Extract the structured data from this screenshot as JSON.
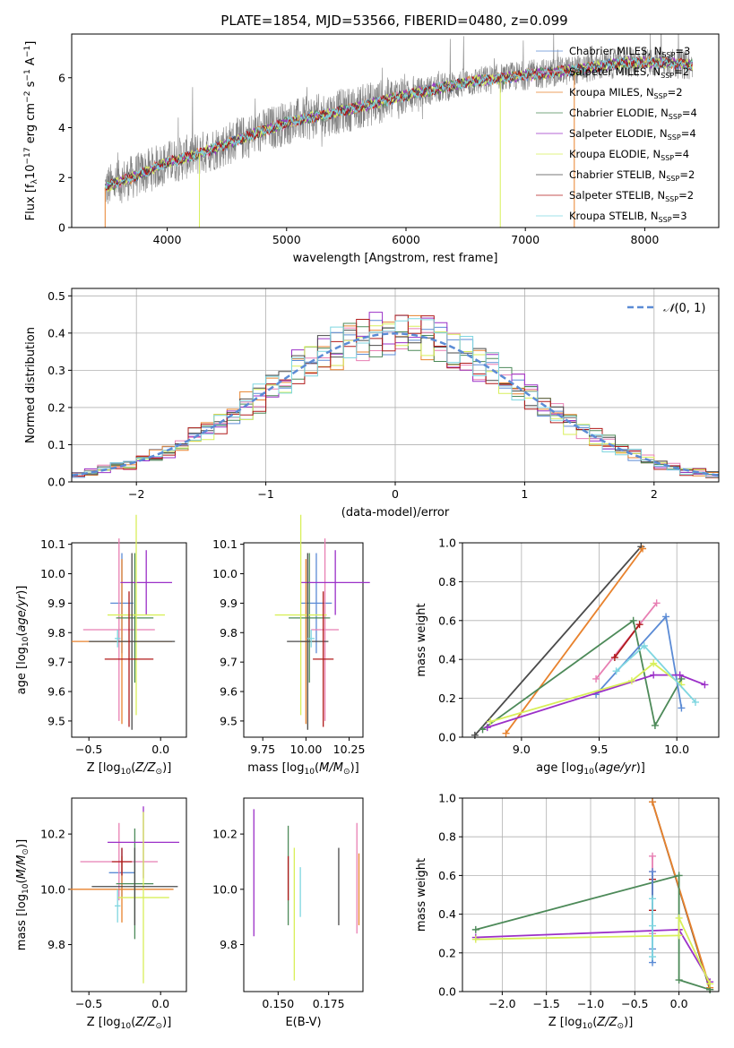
{
  "figure": {
    "title": "PLATE=1854, MJD=53566, FIBERID=0480, z=0.099"
  },
  "colors": {
    "Chabrier MILES": "#5b8bd5",
    "Salpeter MILES": "#e87fb3",
    "Kroupa MILES": "#e8822d",
    "Chabrier ELODIE": "#4d8a59",
    "Salpeter ELODIE": "#9b30c8",
    "Kroupa ELODIE": "#d8ef5a",
    "Chabrier STELIB": "#4a4a4a",
    "Salpeter STELIB": "#b01a1a",
    "Kroupa STELIB": "#7fd6e0",
    "data": "#808080",
    "normal_curve": "#5b8bd5",
    "grid": "#b0b0b0"
  },
  "chart_data": [
    {
      "id": "spectrum",
      "type": "line",
      "title": "PLATE=1854, MJD=53566, FIBERID=0480, z=0.099",
      "xlabel": "wavelength [Angstrom, rest frame]",
      "ylabel": "Flux [f_λ 10^-17 erg cm^-2 s^-1 A^-1]",
      "xlim": [
        3200,
        8620
      ],
      "ylim": [
        0,
        7.75
      ],
      "xticks": [
        "4000",
        "5000",
        "6000",
        "7000",
        "8000"
      ],
      "yticks": [
        "0",
        "2",
        "4",
        "6"
      ],
      "grid": false,
      "legend_position": "top-right",
      "legend": [
        {
          "label": "Chabrier MILES, N_SSP=3",
          "series": "Chabrier MILES"
        },
        {
          "label": "Salpeter MILES, N_SSP=2",
          "series": "Salpeter MILES"
        },
        {
          "label": "Kroupa MILES, N_SSP=2",
          "series": "Kroupa MILES"
        },
        {
          "label": "Chabrier ELODIE, N_SSP=4",
          "series": "Chabrier ELODIE"
        },
        {
          "label": "Salpeter ELODIE, N_SSP=4",
          "series": "Salpeter ELODIE"
        },
        {
          "label": "Kroupa ELODIE, N_SSP=4",
          "series": "Kroupa ELODIE"
        },
        {
          "label": "Chabrier STELIB, N_SSP=2",
          "series": "Chabrier STELIB"
        },
        {
          "label": "Salpeter STELIB, N_SSP=2",
          "series": "Salpeter STELIB"
        },
        {
          "label": "Kroupa STELIB, N_SSP=3",
          "series": "Kroupa STELIB"
        }
      ],
      "continuum": {
        "x": [
          3480,
          3700,
          4000,
          4300,
          4700,
          5000,
          5500,
          6000,
          6500,
          7000,
          7400,
          7800,
          8200,
          8400
        ],
        "y": [
          1.6,
          2.0,
          2.6,
          3.0,
          3.7,
          4.2,
          4.7,
          5.3,
          5.8,
          6.1,
          6.3,
          6.6,
          6.6,
          6.5
        ]
      },
      "data_xrange": [
        3480,
        8400
      ],
      "model_xrange": [
        3480,
        8400
      ]
    },
    {
      "id": "residuals",
      "type": "histogram",
      "xlabel": "(data-model)/error",
      "ylabel": "Normed distribution",
      "xlim": [
        -2.5,
        2.5
      ],
      "ylim": [
        0,
        0.52
      ],
      "xticks": [
        -2,
        -1,
        0,
        1,
        2
      ],
      "yticks": [
        0.0,
        0.1,
        0.2,
        0.3,
        0.4,
        0.5
      ],
      "grid": true,
      "legend": [
        {
          "label": "N(0,1)",
          "style": "dashed"
        }
      ],
      "legend_position": "top-right",
      "bin_width": 0.1,
      "reference_curve": "standard normal"
    },
    {
      "id": "age_vs_Z",
      "type": "errorbar",
      "xlabel": "Z [log10(Z/Z⊙)]",
      "ylabel": "age [log10(age/yr)]",
      "xlim": [
        -0.62,
        0.18
      ],
      "ylim": [
        9.445,
        10.105
      ],
      "xticks": [
        -0.5,
        0.0
      ],
      "xticklabels": [
        "−0.5",
        "0.0"
      ],
      "yticks": [
        9.5,
        9.6,
        9.7,
        9.8,
        9.9,
        10.0,
        10.1
      ],
      "points": [
        {
          "series": "Chabrier MILES",
          "x": -0.27,
          "xerr": 0.08,
          "y": 9.9,
          "yerr": 0.17
        },
        {
          "series": "Salpeter MILES",
          "x": -0.29,
          "xerr": 0.25,
          "y": 9.81,
          "yerr": 0.31
        },
        {
          "series": "Kroupa MILES",
          "x": -0.27,
          "xerr": 0.35,
          "y": 9.77,
          "yerr": 0.28
        },
        {
          "series": "Chabrier ELODIE",
          "x": -0.18,
          "xerr": 0.13,
          "y": 9.85,
          "yerr": 0.22
        },
        {
          "series": "Salpeter ELODIE",
          "x": -0.1,
          "xerr": 0.18,
          "y": 9.97,
          "yerr": 0.11
        },
        {
          "series": "Kroupa ELODIE",
          "x": -0.17,
          "xerr": 0.2,
          "y": 9.86,
          "yerr": 0.34
        },
        {
          "series": "Chabrier STELIB",
          "x": -0.2,
          "xerr": 0.3,
          "y": 9.77,
          "yerr": 0.3
        },
        {
          "series": "Salpeter STELIB",
          "x": -0.22,
          "xerr": 0.17,
          "y": 9.71,
          "yerr": 0.23
        },
        {
          "series": "Kroupa STELIB",
          "x": -0.3,
          "xerr": 0.02,
          "y": 9.78,
          "yerr": 0.03
        }
      ]
    },
    {
      "id": "age_vs_mass",
      "type": "errorbar",
      "xlabel": "mass [log10(M/M⊙)]",
      "ylabel": "",
      "xlim": [
        9.64,
        10.33
      ],
      "ylim": [
        9.445,
        10.105
      ],
      "xticks": [
        9.75,
        10.0,
        10.25
      ],
      "xticklabels": [
        "9.75",
        "10.00",
        "10.25"
      ],
      "yticks": [
        9.5,
        9.6,
        9.7,
        9.8,
        9.9,
        10.0,
        10.1
      ],
      "points": [
        {
          "series": "Chabrier MILES",
          "x": 10.06,
          "xerr": 0.09,
          "y": 9.9,
          "yerr": 0.17
        },
        {
          "series": "Salpeter MILES",
          "x": 10.11,
          "xerr": 0.08,
          "y": 9.81,
          "yerr": 0.31
        },
        {
          "series": "Kroupa MILES",
          "x": 10.0,
          "xerr": 0.03,
          "y": 9.77,
          "yerr": 0.28
        },
        {
          "series": "Chabrier ELODIE",
          "x": 10.02,
          "xerr": 0.12,
          "y": 9.85,
          "yerr": 0.22
        },
        {
          "series": "Salpeter ELODIE",
          "x": 10.17,
          "xerr": 0.2,
          "y": 9.97,
          "yerr": 0.11
        },
        {
          "series": "Kroupa ELODIE",
          "x": 9.97,
          "xerr": 0.15,
          "y": 9.86,
          "yerr": 0.34
        },
        {
          "series": "Chabrier STELIB",
          "x": 10.01,
          "xerr": 0.12,
          "y": 9.77,
          "yerr": 0.3
        },
        {
          "series": "Salpeter STELIB",
          "x": 10.1,
          "xerr": 0.06,
          "y": 9.71,
          "yerr": 0.23
        },
        {
          "series": "Kroupa STELIB",
          "x": 10.03,
          "xerr": 0.02,
          "y": 9.78,
          "yerr": 0.03
        }
      ]
    },
    {
      "id": "weight_vs_age",
      "type": "line",
      "xlabel": "age [log10(age/yr)]",
      "ylabel": "mass weight",
      "xlim": [
        8.62,
        10.27
      ],
      "ylim": [
        0,
        1.0
      ],
      "xticks": [
        9.0,
        9.5,
        10.0
      ],
      "yticks": [
        0.0,
        0.2,
        0.4,
        0.6,
        0.8,
        1.0
      ],
      "grid": true,
      "series": [
        {
          "name": "Chabrier STELIB",
          "x": [
            8.7,
            9.77
          ],
          "y": [
            0.01,
            0.98
          ]
        },
        {
          "name": "Kroupa MILES",
          "x": [
            8.9,
            9.78
          ],
          "y": [
            0.02,
            0.97
          ]
        },
        {
          "name": "Salpeter MILES",
          "x": [
            9.48,
            9.87
          ],
          "y": [
            0.3,
            0.69
          ]
        },
        {
          "name": "Salpeter STELIB",
          "x": [
            9.6,
            9.76
          ],
          "y": [
            0.41,
            0.58
          ]
        },
        {
          "name": "Chabrier ELODIE",
          "x": [
            8.75,
            9.72,
            9.86,
            10.03
          ],
          "y": [
            0.04,
            0.6,
            0.06,
            0.3
          ]
        },
        {
          "name": "Chabrier MILES",
          "x": [
            9.48,
            9.93,
            10.03
          ],
          "y": [
            0.22,
            0.62,
            0.15
          ]
        },
        {
          "name": "Salpeter ELODIE",
          "x": [
            8.78,
            9.85,
            10.02,
            10.18
          ],
          "y": [
            0.05,
            0.32,
            0.32,
            0.27
          ]
        },
        {
          "name": "Kroupa ELODIE",
          "x": [
            8.8,
            9.71,
            9.85,
            10.03
          ],
          "y": [
            0.08,
            0.29,
            0.38,
            0.27
          ]
        },
        {
          "name": "Kroupa STELIB",
          "x": [
            9.61,
            9.79,
            10.12
          ],
          "y": [
            0.34,
            0.47,
            0.18
          ]
        }
      ]
    },
    {
      "id": "mass_vs_Z",
      "type": "errorbar",
      "xlabel": "Z [log10(Z/Z⊙)]",
      "ylabel": "mass [log10(M/M⊙)]",
      "xlim": [
        -0.62,
        0.18
      ],
      "ylim": [
        9.63,
        10.33
      ],
      "xticks": [
        -0.5,
        0.0
      ],
      "xticklabels": [
        "−0.5",
        "0.0"
      ],
      "yticks": [
        9.8,
        10.0,
        10.2
      ],
      "yticklabels": [
        "9.8",
        "10.0",
        "10.2"
      ],
      "points": [
        {
          "series": "Chabrier MILES",
          "x": -0.27,
          "xerr": 0.09,
          "y": 10.06,
          "yerr": 0.09
        },
        {
          "series": "Salpeter MILES",
          "x": -0.29,
          "xerr": 0.27,
          "y": 10.1,
          "yerr": 0.14
        },
        {
          "series": "Kroupa MILES",
          "x": -0.27,
          "xerr": 0.36,
          "y": 10.0,
          "yerr": 0.12
        },
        {
          "series": "Chabrier ELODIE",
          "x": -0.18,
          "xerr": 0.13,
          "y": 10.02,
          "yerr": 0.2
        },
        {
          "series": "Salpeter ELODIE",
          "x": -0.12,
          "xerr": 0.25,
          "y": 10.17,
          "yerr": 0.13
        },
        {
          "series": "Kroupa ELODIE",
          "x": -0.12,
          "xerr": 0.18,
          "y": 9.97,
          "yerr": 0.31
        },
        {
          "series": "Chabrier STELIB",
          "x": -0.18,
          "xerr": 0.3,
          "y": 10.01,
          "yerr": 0.14
        },
        {
          "series": "Salpeter STELIB",
          "x": -0.27,
          "xerr": 0.07,
          "y": 10.1,
          "yerr": 0.05
        },
        {
          "series": "Kroupa STELIB",
          "x": -0.3,
          "xerr": 0.02,
          "y": 9.94,
          "yerr": 0.06
        }
      ]
    },
    {
      "id": "mass_vs_ebv",
      "type": "errorbar",
      "xlabel": "E(B-V)",
      "ylabel": "",
      "xlim": [
        0.133,
        0.192
      ],
      "ylim": [
        9.63,
        10.33
      ],
      "xticks": [
        0.15,
        0.175
      ],
      "xticklabels": [
        "0.150",
        "0.175"
      ],
      "yticks": [
        9.8,
        10.0,
        10.2
      ],
      "yticklabels": [
        "9.8",
        "10.0",
        "10.2"
      ],
      "points": [
        {
          "series": "Salpeter ELODIE",
          "x": 0.138,
          "xerr": 0,
          "y": 10.06,
          "yerr": 0.23
        },
        {
          "series": "Chabrier ELODIE",
          "x": 0.155,
          "xerr": 0,
          "y": 10.05,
          "yerr": 0.18
        },
        {
          "series": "Salpeter STELIB",
          "x": 0.155,
          "xerr": 0,
          "y": 10.04,
          "yerr": 0.08
        },
        {
          "series": "Kroupa ELODIE",
          "x": 0.158,
          "xerr": 0,
          "y": 9.91,
          "yerr": 0.24
        },
        {
          "series": "Kroupa STELIB",
          "x": 0.161,
          "xerr": 0,
          "y": 9.99,
          "yerr": 0.09
        },
        {
          "series": "Chabrier STELIB",
          "x": 0.18,
          "xerr": 0,
          "y": 10.01,
          "yerr": 0.14
        },
        {
          "series": "Salpeter MILES",
          "x": 0.189,
          "xerr": 0,
          "y": 10.04,
          "yerr": 0.2
        },
        {
          "series": "Kroupa MILES",
          "x": 0.19,
          "xerr": 0,
          "y": 10.0,
          "yerr": 0.13
        }
      ]
    },
    {
      "id": "weight_vs_Z",
      "type": "line",
      "xlabel": "Z [log10(Z/Z⊙)]",
      "ylabel": "mass weight",
      "xlim": [
        -2.45,
        0.45
      ],
      "ylim": [
        0,
        1.0
      ],
      "xticks": [
        -2.0,
        -1.5,
        -1.0,
        -0.5,
        0.0
      ],
      "xticklabels": [
        "−2.0",
        "−1.5",
        "−1.0",
        "−0.5",
        "0.0"
      ],
      "yticks": [
        0.0,
        0.2,
        0.4,
        0.6,
        0.8,
        1.0
      ],
      "grid": true,
      "series": [
        {
          "name": "Chabrier STELIB",
          "x": [
            -0.3,
            0.35
          ],
          "y": [
            0.98,
            0.01
          ]
        },
        {
          "name": "Kroupa MILES",
          "x": [
            -0.3,
            0.35
          ],
          "y": [
            0.98,
            0.02
          ]
        },
        {
          "name": "Salpeter MILES",
          "x": [
            -0.3,
            -0.3,
            -0.3
          ],
          "y": [
            0.7,
            0.62,
            0.3
          ]
        },
        {
          "name": "Salpeter STELIB",
          "x": [
            -0.3,
            -0.3
          ],
          "y": [
            0.58,
            0.42
          ]
        },
        {
          "name": "Chabrier ELODIE",
          "x": [
            -2.3,
            0.0,
            0.0,
            0.35
          ],
          "y": [
            0.32,
            0.6,
            0.06,
            0.01
          ]
        },
        {
          "name": "Chabrier MILES",
          "x": [
            -0.3,
            -0.3,
            -0.3
          ],
          "y": [
            0.62,
            0.22,
            0.15
          ]
        },
        {
          "name": "Salpeter ELODIE",
          "x": [
            -2.3,
            0.0,
            0.0,
            0.35
          ],
          "y": [
            0.28,
            0.32,
            0.32,
            0.05
          ]
        },
        {
          "name": "Kroupa ELODIE",
          "x": [
            -2.3,
            0.0,
            0.0,
            0.35
          ],
          "y": [
            0.27,
            0.29,
            0.38,
            0.04
          ]
        },
        {
          "name": "Kroupa STELIB",
          "x": [
            -0.3,
            -0.3,
            -0.3
          ],
          "y": [
            0.48,
            0.34,
            0.18
          ]
        }
      ]
    }
  ]
}
